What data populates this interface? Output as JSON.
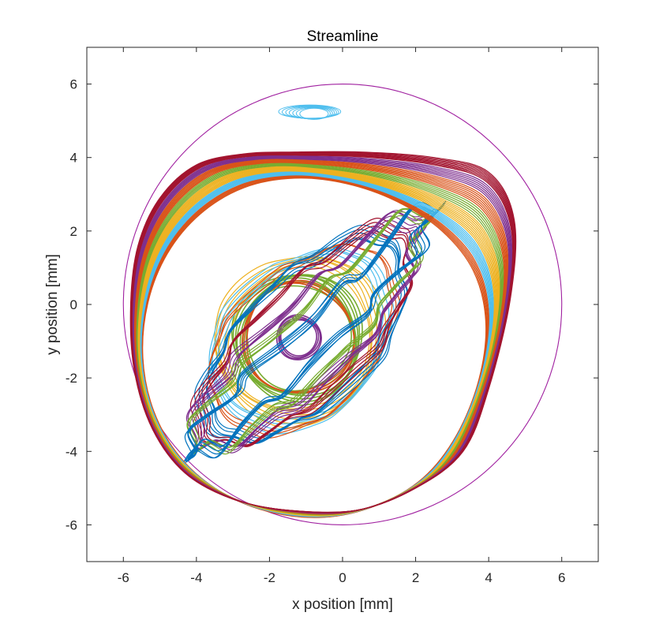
{
  "chart_data": {
    "type": "line",
    "title": "Streamline",
    "xlabel": "x position [mm]",
    "ylabel": "y position [mm]",
    "xlim": [
      -7,
      7
    ],
    "ylim": [
      -7,
      7
    ],
    "xticks": [
      -6,
      -4,
      -2,
      0,
      2,
      4,
      6
    ],
    "yticks": [
      -6,
      -4,
      -2,
      0,
      2,
      4,
      6
    ],
    "xtick_labels": [
      "-6",
      "-4",
      "-2",
      "0",
      "2",
      "4",
      "6"
    ],
    "ytick_labels": [
      "-6",
      "-4",
      "-2",
      "0",
      "2",
      "4",
      "6"
    ],
    "grid": false,
    "legend": "none",
    "palette": [
      "#0072BD",
      "#D95319",
      "#EDB120",
      "#7E2F8E",
      "#77AC30",
      "#4DBEEE",
      "#A2142F"
    ],
    "boundary_circle": {
      "center": [
        0,
        0
      ],
      "radius": 6,
      "color": "#A020A0"
    },
    "vortex_center": [
      -1.2,
      -0.9
    ],
    "small_eddy": {
      "center": [
        -0.9,
        5.25
      ],
      "half_width": 0.85,
      "half_height": 0.18,
      "color": "#4DBEEE"
    },
    "series": [
      {
        "color": "#7E2F8E",
        "kind": "circle",
        "cx": -1.2,
        "cy": -0.9,
        "r": 0.55,
        "lines": 4,
        "spread": 0.04
      },
      {
        "color": "#77AC30",
        "kind": "circle",
        "cx": -1.22,
        "cy": -0.9,
        "r": 1.6,
        "lines": 8,
        "spread": 0.05
      },
      {
        "color": "#D95319",
        "kind": "circle",
        "cx": -1.2,
        "cy": -0.92,
        "r": 1.5,
        "lines": 3,
        "spread": 0.03
      },
      {
        "color": "#EDB120",
        "kind": "circle",
        "cx": -1.2,
        "cy": -0.95,
        "r": 2.2,
        "lines": 6,
        "spread": 0.08
      },
      {
        "color": "#4DBEEE",
        "kind": "circle",
        "cx": -1.15,
        "cy": -1.0,
        "r": 2.6,
        "lines": 4,
        "spread": 0.1
      },
      {
        "color": "#D95319",
        "kind": "circle",
        "cx": -1.1,
        "cy": -1.05,
        "r": 2.9,
        "lines": 3,
        "spread": 0.06
      },
      {
        "color": "#0072BD",
        "kind": "circle",
        "cx": -1.05,
        "cy": -1.1,
        "r": 3.3,
        "lines": 6,
        "spread": 0.06
      },
      {
        "color": "#A2142F",
        "kind": "circle",
        "cx": -1.0,
        "cy": -1.15,
        "r": 3.6,
        "lines": 5,
        "spread": 0.06
      },
      {
        "color": "#7E2F8E",
        "kind": "circle",
        "cx": -0.95,
        "cy": -1.2,
        "r": 3.95,
        "lines": 6,
        "spread": 0.07
      },
      {
        "color": "#77AC30",
        "kind": "circle",
        "cx": -0.9,
        "cy": -1.25,
        "r": 4.15,
        "lines": 5,
        "spread": 0.06
      },
      {
        "color": "#0072BD",
        "kind": "circle",
        "cx": -0.85,
        "cy": -1.3,
        "r": 4.4,
        "lines": 6,
        "spread": 0.07
      },
      {
        "color": "#D95319",
        "kind": "outer",
        "t0": 0.22,
        "t1": 0.3,
        "lines": 6
      },
      {
        "color": "#4DBEEE",
        "kind": "outer",
        "t0": 0.32,
        "t1": 0.42,
        "lines": 7
      },
      {
        "color": "#EDB120",
        "kind": "outer",
        "t0": 0.44,
        "t1": 0.58,
        "lines": 9
      },
      {
        "color": "#77AC30",
        "kind": "outer",
        "t0": 0.6,
        "t1": 0.68,
        "lines": 5
      },
      {
        "color": "#D95319",
        "kind": "outer",
        "t0": 0.7,
        "t1": 0.8,
        "lines": 7
      },
      {
        "color": "#7E2F8E",
        "kind": "outer",
        "t0": 0.82,
        "t1": 0.9,
        "lines": 6
      },
      {
        "color": "#A2142F",
        "kind": "outer",
        "t0": 0.92,
        "t1": 1.0,
        "lines": 8
      }
    ]
  }
}
